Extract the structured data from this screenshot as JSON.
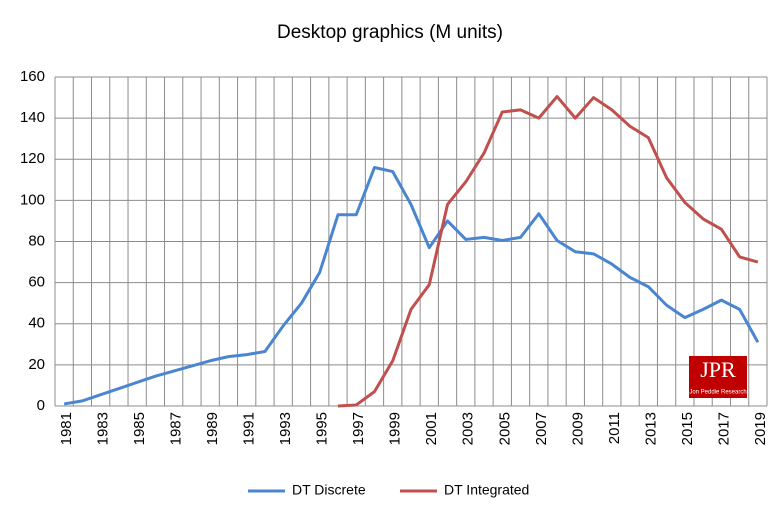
{
  "chart_data": {
    "type": "line",
    "title": "Desktop graphics (M units)",
    "categories": [
      "1981",
      null,
      "1983",
      null,
      "1985",
      null,
      "1987",
      null,
      "1989",
      null,
      "1991",
      null,
      "1993",
      null,
      "1995",
      null,
      "1997",
      null,
      "1999",
      null,
      "2001",
      null,
      "2003",
      null,
      "2005",
      null,
      "2007",
      null,
      "2009",
      null,
      "2011",
      null,
      "2013",
      null,
      "2015",
      null,
      "2017",
      null,
      "2019"
    ],
    "series": [
      {
        "name": "DT Discrete",
        "color": "#4a86d0",
        "values": [
          1,
          2.5,
          5.5,
          8.5,
          11.5,
          14.5,
          17,
          19.5,
          22,
          24,
          25,
          26.5,
          39,
          50,
          65,
          93,
          93,
          116,
          114,
          98,
          77,
          90,
          81,
          82,
          80.5,
          82,
          93.5,
          80.5,
          75,
          74,
          69,
          62.5,
          58,
          49,
          43,
          47,
          51.5,
          47,
          31
        ]
      },
      {
        "name": "DT Integrated",
        "color": "#c0504d",
        "values": [
          null,
          null,
          null,
          null,
          null,
          null,
          null,
          null,
          null,
          null,
          null,
          null,
          null,
          null,
          null,
          0,
          0.5,
          7,
          22,
          47,
          59,
          98,
          109,
          123,
          143,
          144,
          140,
          150.5,
          140,
          150,
          144,
          136,
          130.5,
          111,
          99,
          91,
          86,
          72.5,
          70
        ]
      }
    ],
    "ylim": [
      0,
      160
    ],
    "yticks": [
      0,
      20,
      40,
      60,
      80,
      100,
      120,
      140,
      160
    ],
    "grid": true,
    "legend": "bottom",
    "logo": {
      "text": "JPR",
      "subtext": "Jon Peddie Research"
    }
  }
}
